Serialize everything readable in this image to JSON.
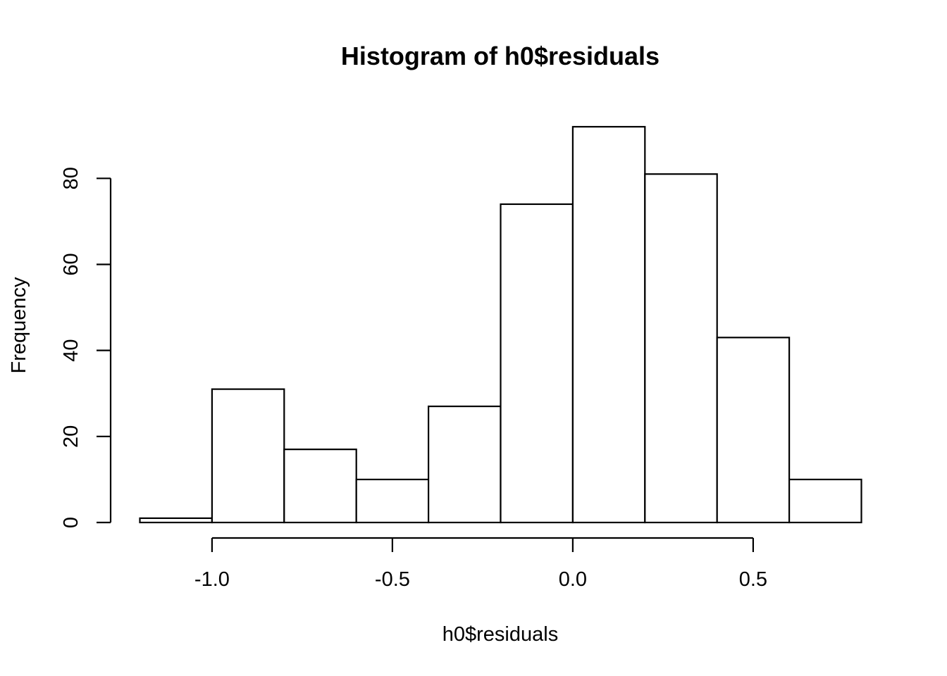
{
  "chart_data": {
    "type": "bar",
    "title": "Histogram of h0$residuals",
    "xlabel": "h0$residuals",
    "ylabel": "Frequency",
    "bins": [
      {
        "x0": -1.2,
        "x1": -1.0,
        "count": 1
      },
      {
        "x0": -1.0,
        "x1": -0.8,
        "count": 31
      },
      {
        "x0": -0.8,
        "x1": -0.6,
        "count": 17
      },
      {
        "x0": -0.6,
        "x1": -0.4,
        "count": 10
      },
      {
        "x0": -0.4,
        "x1": -0.2,
        "count": 27
      },
      {
        "x0": -0.2,
        "x1": 0.0,
        "count": 74
      },
      {
        "x0": 0.0,
        "x1": 0.2,
        "count": 92
      },
      {
        "x0": 0.2,
        "x1": 0.4,
        "count": 81
      },
      {
        "x0": 0.4,
        "x1": 0.6,
        "count": 43
      },
      {
        "x0": 0.6,
        "x1": 0.8,
        "count": 10
      }
    ],
    "xticks": [
      -1.0,
      -0.5,
      0.0,
      0.5
    ],
    "xtick_labels": [
      "-1.0",
      "-0.5",
      "0.0",
      "0.5"
    ],
    "yticks": [
      0,
      20,
      40,
      60,
      80
    ],
    "ytick_labels": [
      "0",
      "20",
      "40",
      "60",
      "80"
    ],
    "xlim": [
      -1.2,
      0.8
    ],
    "ylim": [
      0,
      92
    ],
    "grid": false,
    "colors": {
      "bar_fill": "#ffffff",
      "bar_stroke": "#000000"
    }
  }
}
